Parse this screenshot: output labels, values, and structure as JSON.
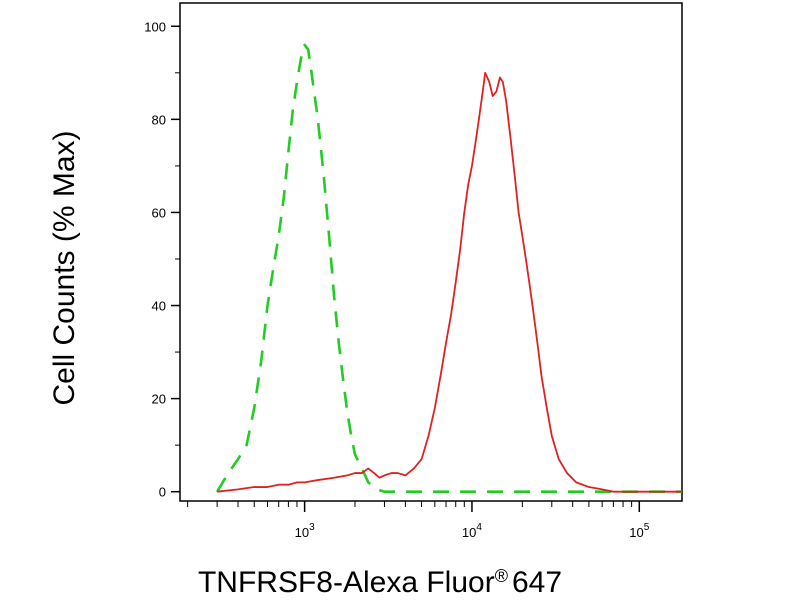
{
  "chart_data": {
    "type": "line",
    "xlabel": "TNFRSF8-Alexa Fluor",
    "xlabel_superscript": "®",
    "xlabel_suffix": "647",
    "ylabel": "Cell Counts (% Max)",
    "x_scale": "log",
    "xlim": [
      180,
      180000
    ],
    "ylim": [
      -2,
      105
    ],
    "y_ticks": [
      0,
      20,
      40,
      60,
      80,
      100
    ],
    "x_ticks": [
      {
        "value": 1000,
        "base": "10",
        "exp": "3"
      },
      {
        "value": 10000,
        "base": "10",
        "exp": "4"
      },
      {
        "value": 100000,
        "base": "10",
        "exp": "5"
      }
    ],
    "grid": false,
    "series": [
      {
        "color": "#22cc22",
        "dashed": true,
        "points": [
          [
            300,
            0
          ],
          [
            350,
            4
          ],
          [
            400,
            7
          ],
          [
            450,
            10
          ],
          [
            500,
            18
          ],
          [
            550,
            28
          ],
          [
            600,
            40
          ],
          [
            650,
            48
          ],
          [
            700,
            55
          ],
          [
            750,
            63
          ],
          [
            800,
            73
          ],
          [
            850,
            82
          ],
          [
            900,
            88
          ],
          [
            950,
            93
          ],
          [
            1000,
            96
          ],
          [
            1050,
            95
          ],
          [
            1100,
            90
          ],
          [
            1200,
            80
          ],
          [
            1300,
            68
          ],
          [
            1400,
            55
          ],
          [
            1500,
            42
          ],
          [
            1600,
            32
          ],
          [
            1700,
            24
          ],
          [
            1800,
            17
          ],
          [
            1900,
            12
          ],
          [
            2000,
            8
          ],
          [
            2200,
            5
          ],
          [
            2400,
            2
          ],
          [
            2700,
            0.5
          ],
          [
            3000,
            0
          ],
          [
            10000,
            0
          ],
          [
            100000,
            0
          ],
          [
            180000,
            0
          ]
        ]
      },
      {
        "color": "#dd2222",
        "dashed": false,
        "points": [
          [
            300,
            0
          ],
          [
            400,
            0.5
          ],
          [
            500,
            1
          ],
          [
            600,
            1
          ],
          [
            700,
            1.5
          ],
          [
            800,
            1.5
          ],
          [
            900,
            2
          ],
          [
            1000,
            2
          ],
          [
            1200,
            2.5
          ],
          [
            1500,
            3
          ],
          [
            1800,
            3.5
          ],
          [
            2000,
            4
          ],
          [
            2200,
            4
          ],
          [
            2400,
            5
          ],
          [
            2600,
            4
          ],
          [
            2800,
            3
          ],
          [
            3000,
            3.5
          ],
          [
            3300,
            4
          ],
          [
            3600,
            4
          ],
          [
            4000,
            3.5
          ],
          [
            4500,
            5
          ],
          [
            5000,
            7
          ],
          [
            5500,
            12
          ],
          [
            6000,
            18
          ],
          [
            6500,
            25
          ],
          [
            7000,
            32
          ],
          [
            7500,
            38
          ],
          [
            8000,
            45
          ],
          [
            8500,
            52
          ],
          [
            9000,
            60
          ],
          [
            9500,
            66
          ],
          [
            10000,
            70
          ],
          [
            10500,
            75
          ],
          [
            11000,
            80
          ],
          [
            11500,
            85
          ],
          [
            12000,
            90
          ],
          [
            12700,
            88
          ],
          [
            13300,
            85
          ],
          [
            14000,
            86
          ],
          [
            14700,
            89
          ],
          [
            15300,
            88
          ],
          [
            16000,
            84
          ],
          [
            17000,
            76
          ],
          [
            18000,
            68
          ],
          [
            19000,
            60
          ],
          [
            20000,
            55
          ],
          [
            21000,
            50
          ],
          [
            22000,
            45
          ],
          [
            23000,
            40
          ],
          [
            24000,
            35
          ],
          [
            25000,
            30
          ],
          [
            26000,
            25
          ],
          [
            28000,
            18
          ],
          [
            30000,
            12
          ],
          [
            33000,
            7
          ],
          [
            37000,
            4
          ],
          [
            42000,
            2
          ],
          [
            50000,
            1
          ],
          [
            60000,
            0.5
          ],
          [
            70000,
            0
          ],
          [
            100000,
            0
          ],
          [
            180000,
            0
          ]
        ]
      }
    ]
  }
}
